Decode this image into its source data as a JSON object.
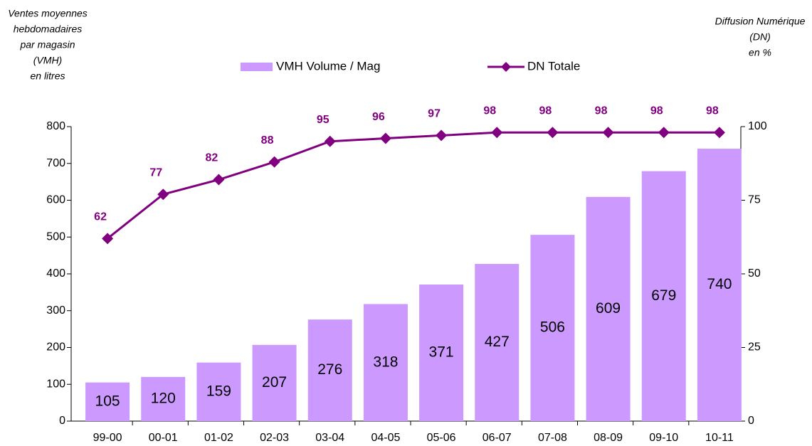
{
  "chart_data": {
    "type": "bar_line",
    "ylabel": [
      "Ventes moyennes",
      "hebdomadaires",
      "par magasin",
      "(VMH)",
      "en litres"
    ],
    "y2label": [
      "Diffusion Numérique",
      "(DN)",
      "en %"
    ],
    "categories": [
      "99-00",
      "00-01",
      "01-02",
      "02-03",
      "03-04",
      "04-05",
      "05-06",
      "06-07",
      "07-08",
      "08-09",
      "09-10",
      "10-11"
    ],
    "series": [
      {
        "name": "VMH Volume / Mag",
        "type": "bar",
        "color": "#cc99ff",
        "values": [
          105,
          120,
          159,
          207,
          276,
          318,
          371,
          427,
          506,
          609,
          679,
          740
        ]
      },
      {
        "name": "DN Totale",
        "type": "line",
        "axis": "y2",
        "color": "#800080",
        "values": [
          62,
          77,
          82,
          88,
          95,
          96,
          97,
          98,
          98,
          98,
          98,
          98
        ]
      }
    ],
    "ylim": [
      0,
      800
    ],
    "yticks": [
      0,
      100,
      200,
      300,
      400,
      500,
      600,
      700,
      800
    ],
    "y2lim": [
      0,
      100
    ],
    "y2ticks": [
      0,
      25,
      50,
      75,
      100
    ],
    "legend": "top",
    "grid": false
  }
}
